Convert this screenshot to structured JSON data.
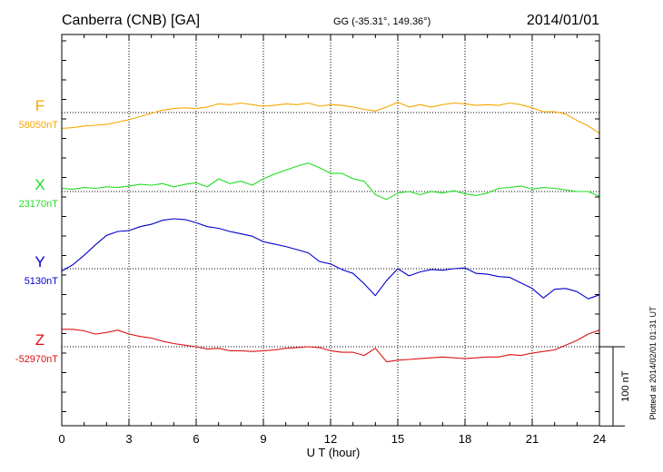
{
  "header": {
    "station": "Canberra (CNB)  [GA]",
    "coords": "GG (-35.31°, 149.36°)",
    "date": "2014/01/01"
  },
  "footer": {
    "plotted": "Plotted at 2014/02/01 01:31  UT"
  },
  "chart_data": {
    "type": "line",
    "xlabel": "U T (hour)",
    "xlim": [
      0,
      24
    ],
    "x_ticks": [
      "0",
      "3",
      "6",
      "9",
      "12",
      "15",
      "18",
      "21",
      "24"
    ],
    "y_unit": "nT",
    "scale_bar_label": "100 nT",
    "scale_bar_nT": 100,
    "grid": true,
    "series": [
      {
        "name": "F",
        "baseline_label": "58050nT",
        "baseline_nT": 58050,
        "color": "#f5a800",
        "x": [
          0,
          0.5,
          1,
          1.5,
          2,
          2.5,
          3,
          3.5,
          4,
          4.5,
          5,
          5.5,
          6,
          6.5,
          7,
          7.5,
          8,
          8.5,
          9,
          9.5,
          10,
          10.5,
          11,
          11.5,
          12,
          12.5,
          13,
          13.5,
          14,
          14.5,
          15,
          15.5,
          16,
          16.5,
          17,
          17.5,
          18,
          18.5,
          19,
          19.5,
          20,
          20.5,
          21,
          21.5,
          22,
          22.5,
          23,
          23.5,
          24
        ],
        "values": [
          58030,
          58031,
          58033,
          58034,
          58035,
          58038,
          58041,
          58045,
          58049,
          58053,
          58055,
          58056,
          58055,
          58057,
          58061,
          58060,
          58062,
          58060,
          58058,
          58059,
          58061,
          58060,
          58062,
          58058,
          58060,
          58059,
          58057,
          58054,
          58052,
          58057,
          58063,
          58057,
          58060,
          58057,
          58060,
          58062,
          58061,
          58059,
          58060,
          58059,
          58062,
          58060,
          58056,
          58051,
          58051,
          58048,
          58040,
          58033,
          58024
        ]
      },
      {
        "name": "X",
        "baseline_label": "23170nT",
        "baseline_nT": 23170,
        "color": "#22dd22",
        "x": [
          0,
          0.5,
          1,
          1.5,
          2,
          2.5,
          3,
          3.5,
          4,
          4.5,
          5,
          5.5,
          6,
          6.5,
          7,
          7.5,
          8,
          8.5,
          9,
          9.5,
          10,
          10.5,
          11,
          11.5,
          12,
          12.5,
          13,
          13.5,
          14,
          14.5,
          15,
          15.5,
          16,
          16.5,
          17,
          17.5,
          18,
          18.5,
          19,
          19.5,
          20,
          20.5,
          21,
          21.5,
          22,
          22.5,
          23,
          23.5,
          24
        ],
        "values": [
          23174,
          23173,
          23175,
          23174,
          23176,
          23175,
          23177,
          23179,
          23178,
          23180,
          23176,
          23179,
          23181,
          23176,
          23186,
          23180,
          23183,
          23178,
          23186,
          23192,
          23197,
          23202,
          23206,
          23200,
          23193,
          23193,
          23186,
          23183,
          23166,
          23160,
          23168,
          23170,
          23166,
          23170,
          23168,
          23171,
          23167,
          23165,
          23168,
          23174,
          23175,
          23177,
          23173,
          23175,
          23174,
          23172,
          23170,
          23170,
          23164
        ]
      },
      {
        "name": "Y",
        "baseline_label": "5130nT",
        "baseline_nT": 5130,
        "color": "#0000cc",
        "x": [
          0,
          0.5,
          1,
          1.5,
          2,
          2.5,
          3,
          3.5,
          4,
          4.5,
          5,
          5.5,
          6,
          6.5,
          7,
          7.5,
          8,
          8.5,
          9,
          9.5,
          10,
          10.5,
          11,
          11.5,
          12,
          12.5,
          13,
          13.5,
          14,
          14.5,
          15,
          15.5,
          16,
          16.5,
          17,
          17.5,
          18,
          18.5,
          19,
          19.5,
          20,
          20.5,
          21,
          21.5,
          22,
          22.5,
          23,
          23.5,
          24
        ],
        "values": [
          5127,
          5135,
          5147,
          5160,
          5172,
          5177,
          5178,
          5183,
          5186,
          5191,
          5193,
          5192,
          5188,
          5183,
          5181,
          5177,
          5174,
          5171,
          5164,
          5161,
          5158,
          5154,
          5150,
          5139,
          5136,
          5129,
          5124,
          5111,
          5096,
          5115,
          5130,
          5121,
          5126,
          5129,
          5128,
          5130,
          5131,
          5124,
          5123,
          5120,
          5119,
          5112,
          5105,
          5093,
          5104,
          5105,
          5101,
          5092,
          5097
        ]
      },
      {
        "name": "Z",
        "baseline_label": "-52970nT",
        "baseline_nT": -52970,
        "color": "#dd1111",
        "x": [
          0,
          0.5,
          1,
          1.5,
          2,
          2.5,
          3,
          3.5,
          4,
          4.5,
          5,
          5.5,
          6,
          6.5,
          7,
          7.5,
          8,
          8.5,
          9,
          9.5,
          10,
          10.5,
          11,
          11.5,
          12,
          12.5,
          13,
          13.5,
          14,
          14.5,
          15,
          15.5,
          16,
          16.5,
          17,
          17.5,
          18,
          18.5,
          19,
          19.5,
          20,
          20.5,
          21,
          21.5,
          22,
          22.5,
          23,
          23.5,
          24
        ],
        "values": [
          -52948,
          -52948,
          -52950,
          -52954,
          -52952,
          -52949,
          -52954,
          -52957,
          -52959,
          -52963,
          -52966,
          -52968,
          -52970,
          -52973,
          -52972,
          -52975,
          -52975,
          -52976,
          -52975,
          -52974,
          -52972,
          -52971,
          -52970,
          -52971,
          -52975,
          -52977,
          -52977,
          -52981,
          -52972,
          -52989,
          -52987,
          -52986,
          -52985,
          -52984,
          -52983,
          -52984,
          -52985,
          -52984,
          -52983,
          -52983,
          -52980,
          -52981,
          -52978,
          -52976,
          -52974,
          -52968,
          -52962,
          -52954,
          -52949
        ]
      }
    ]
  }
}
